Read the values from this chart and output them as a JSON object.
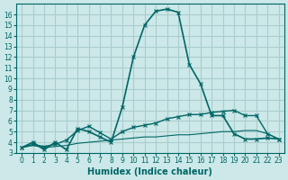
{
  "xlabel": "Humidex (Indice chaleur)",
  "bg_color": "#cce8e8",
  "grid_color": "#aacccc",
  "line_color": "#006666",
  "xlim": [
    -0.5,
    23.5
  ],
  "ylim": [
    3,
    17
  ],
  "yticks": [
    3,
    4,
    5,
    6,
    7,
    8,
    9,
    10,
    11,
    12,
    13,
    14,
    15,
    16
  ],
  "xticks": [
    0,
    1,
    2,
    3,
    4,
    5,
    6,
    7,
    8,
    9,
    10,
    11,
    12,
    13,
    14,
    15,
    16,
    17,
    18,
    19,
    20,
    21,
    22,
    23
  ],
  "line1_x": [
    0,
    1,
    2,
    3,
    4,
    5,
    6,
    7,
    8,
    9,
    10,
    11,
    12,
    13,
    14,
    15,
    16,
    17,
    18,
    19,
    20,
    21,
    22,
    23
  ],
  "line1_y": [
    3.5,
    4.0,
    3.3,
    4.0,
    3.3,
    5.3,
    5.0,
    4.5,
    4.0,
    7.3,
    12.0,
    15.0,
    16.3,
    16.5,
    16.2,
    11.3,
    9.5,
    6.5,
    6.5,
    4.8,
    4.3,
    4.3,
    4.4,
    4.3
  ],
  "line2_x": [
    0,
    1,
    2,
    3,
    4,
    5,
    6,
    7,
    8,
    9,
    10,
    11,
    12,
    13,
    14,
    15,
    16,
    17,
    18,
    19,
    20,
    21,
    22,
    23
  ],
  "line2_y": [
    3.5,
    3.8,
    3.6,
    3.8,
    4.2,
    5.1,
    5.5,
    4.9,
    4.3,
    5.0,
    5.4,
    5.6,
    5.8,
    6.2,
    6.4,
    6.6,
    6.6,
    6.8,
    6.9,
    7.0,
    6.5,
    6.5,
    4.8,
    4.3
  ],
  "line3_x": [
    0,
    1,
    2,
    3,
    4,
    5,
    6,
    7,
    8,
    9,
    10,
    11,
    12,
    13,
    14,
    15,
    16,
    17,
    18,
    19,
    20,
    21,
    22,
    23
  ],
  "line3_y": [
    3.5,
    3.7,
    3.5,
    3.6,
    3.7,
    3.9,
    4.0,
    4.1,
    4.2,
    4.3,
    4.4,
    4.5,
    4.5,
    4.6,
    4.7,
    4.7,
    4.8,
    4.9,
    5.0,
    5.0,
    5.1,
    5.1,
    4.8,
    4.3
  ]
}
